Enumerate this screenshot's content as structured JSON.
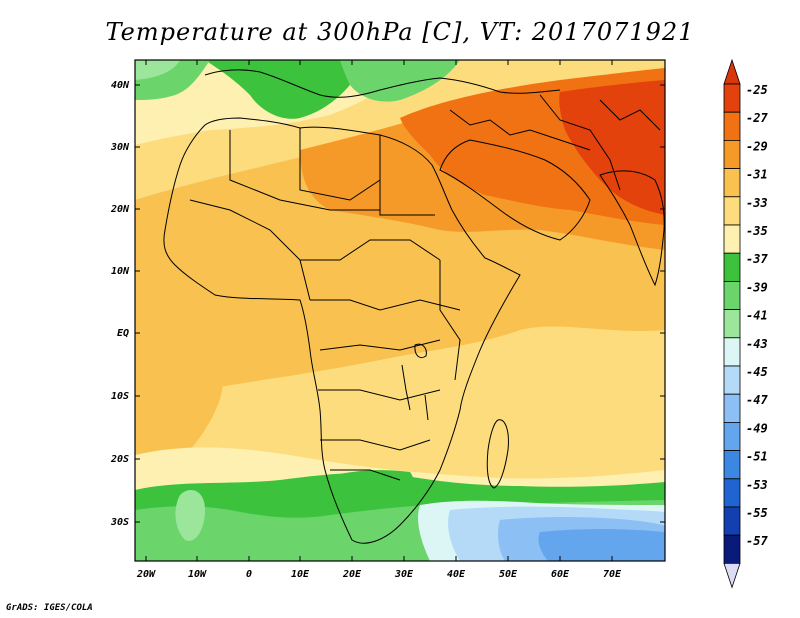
{
  "title": "Temperature at 300hPa [C], VT: 2017071921",
  "credit": "GrADS: IGES/COLA",
  "map": {
    "lat_labels": [
      "40N",
      "30N",
      "20N",
      "10N",
      "EQ",
      "10S",
      "20S",
      "30S"
    ],
    "lon_labels": [
      "20W",
      "10W",
      "0",
      "10E",
      "20E",
      "30E",
      "40E",
      "50E",
      "60E",
      "70E"
    ]
  },
  "colorbar": {
    "labels": [
      "-25",
      "-27",
      "-29",
      "-31",
      "-33",
      "-35",
      "-37",
      "-39",
      "-41",
      "-43",
      "-45",
      "-47",
      "-49",
      "-51",
      "-53",
      "-55",
      "-57"
    ],
    "colors": [
      "#e3420c",
      "#f07212",
      "#f59a28",
      "#f8c150",
      "#fcdc7c",
      "#fdf0b0",
      "#3cc23c",
      "#6bd46b",
      "#9be69b",
      "#dcf6f6",
      "#b4daf8",
      "#8cc0f4",
      "#64a6ee",
      "#3c86e4",
      "#1f64d0",
      "#1240b0",
      "#0a1a7a"
    ],
    "top_color": "#d9360a",
    "bottom_color": "#dcdcf6"
  },
  "colors": {
    "land_border": "#000000",
    "frame": "#000000"
  }
}
